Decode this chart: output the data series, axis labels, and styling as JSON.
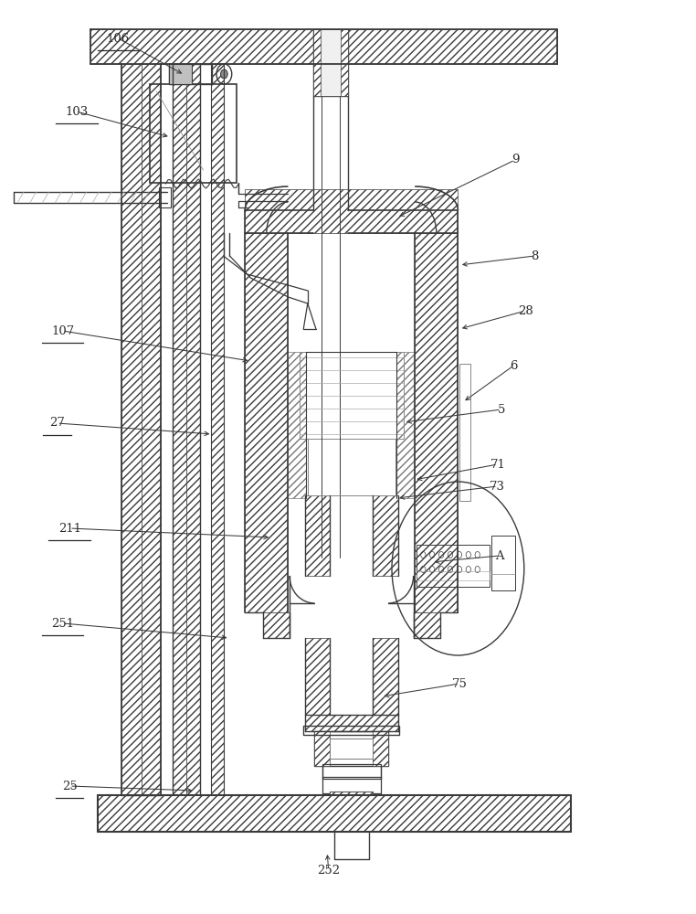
{
  "bg_color": "#ffffff",
  "line_color": "#3a3a3a",
  "fig_width": 7.62,
  "fig_height": 10.0,
  "underlined_labels": [
    "106",
    "103",
    "107",
    "27",
    "211",
    "251",
    "25"
  ],
  "leaders": [
    [
      "106",
      [
        0.17,
        0.958
      ],
      [
        0.265,
        0.918
      ]
    ],
    [
      "103",
      [
        0.11,
        0.878
      ],
      [
        0.245,
        0.85
      ]
    ],
    [
      "9",
      [
        0.74,
        0.825
      ],
      [
        0.57,
        0.762
      ]
    ],
    [
      "8",
      [
        0.768,
        0.72
      ],
      [
        0.66,
        0.71
      ]
    ],
    [
      "28",
      [
        0.755,
        0.66
      ],
      [
        0.66,
        0.64
      ]
    ],
    [
      "6",
      [
        0.738,
        0.6
      ],
      [
        0.665,
        0.56
      ]
    ],
    [
      "5",
      [
        0.72,
        0.552
      ],
      [
        0.58,
        0.538
      ]
    ],
    [
      "107",
      [
        0.09,
        0.638
      ],
      [
        0.36,
        0.605
      ]
    ],
    [
      "27",
      [
        0.082,
        0.537
      ],
      [
        0.305,
        0.525
      ]
    ],
    [
      "71",
      [
        0.715,
        0.492
      ],
      [
        0.595,
        0.475
      ]
    ],
    [
      "73",
      [
        0.715,
        0.468
      ],
      [
        0.57,
        0.455
      ]
    ],
    [
      "211",
      [
        0.1,
        0.422
      ],
      [
        0.39,
        0.412
      ]
    ],
    [
      "A",
      [
        0.718,
        0.392
      ],
      [
        0.62,
        0.385
      ]
    ],
    [
      "251",
      [
        0.09,
        0.318
      ],
      [
        0.33,
        0.302
      ]
    ],
    [
      "75",
      [
        0.66,
        0.252
      ],
      [
        0.548,
        0.238
      ]
    ],
    [
      "25",
      [
        0.1,
        0.14
      ],
      [
        0.28,
        0.135
      ]
    ],
    [
      "252",
      [
        0.472,
        0.048
      ],
      [
        0.47,
        0.068
      ]
    ]
  ]
}
